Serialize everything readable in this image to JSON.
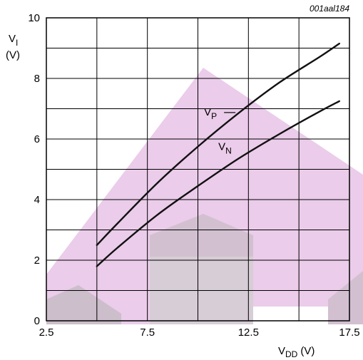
{
  "chart_data": {
    "type": "line",
    "code": "001aal184",
    "y_axis": {
      "symbol": "V",
      "subscript": "I",
      "unit": "(V)",
      "range": [
        0,
        10
      ],
      "ticks": [
        0,
        2,
        4,
        6,
        8,
        10
      ],
      "tick_labels": [
        "0",
        "2",
        "4",
        "6",
        "8",
        "10"
      ]
    },
    "x_axis": {
      "symbol": "V",
      "subscript": "DD",
      "unit": "(V)",
      "range": [
        2.5,
        17.5
      ],
      "ticks": [
        2.5,
        7.5,
        12.5,
        17.5
      ],
      "tick_labels": [
        "2.5",
        "7.5",
        "12.5",
        "17.5"
      ]
    },
    "grid": true,
    "series": [
      {
        "name": "VP",
        "label_main": "V",
        "label_sub": "P",
        "x": [
          5,
          6,
          8,
          10,
          12,
          14,
          16,
          17
        ],
        "y": [
          2.5,
          3.2,
          4.55,
          5.75,
          6.85,
          7.85,
          8.7,
          9.15
        ]
      },
      {
        "name": "VN",
        "label_main": "V",
        "label_sub": "N",
        "x": [
          5,
          6,
          8,
          10,
          12,
          14,
          16,
          17
        ],
        "y": [
          1.8,
          2.4,
          3.5,
          4.45,
          5.35,
          6.15,
          6.9,
          7.25
        ]
      }
    ],
    "colors": {
      "line": "#111111",
      "grid": "#000000",
      "watermark_pink": "#e8c3e6",
      "watermark_grey": "#c9bcc8"
    }
  }
}
